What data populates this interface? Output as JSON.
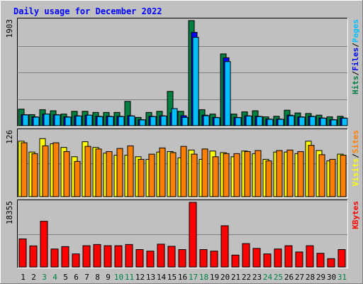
{
  "chart_data": {
    "type": "bar",
    "title": "Daily usage for December 2022",
    "categories": [
      "1",
      "2",
      "3",
      "4",
      "5",
      "6",
      "7",
      "8",
      "9",
      "10",
      "11",
      "12",
      "13",
      "14",
      "15",
      "16",
      "17",
      "18",
      "19",
      "20",
      "21",
      "22",
      "23",
      "24",
      "25",
      "26",
      "27",
      "28",
      "29",
      "30",
      "31"
    ],
    "weekend_days": [
      "3",
      "4",
      "10",
      "11",
      "17",
      "18",
      "24",
      "25",
      "31"
    ],
    "panels": [
      {
        "id": "hits_panel",
        "ymax_label": "1903",
        "ymax": 1903,
        "axis_legend": [
          {
            "text": "Hits",
            "color": "#008040"
          },
          {
            "text": "Files",
            "color": "#0000ff"
          },
          {
            "text": "Pages",
            "color": "#00c0ff"
          }
        ],
        "series": [
          {
            "name": "Hits",
            "color": "#008040",
            "values": [
              300,
              200,
              290,
              270,
              210,
              260,
              260,
              240,
              240,
              240,
              440,
              150,
              240,
              260,
              620,
              260,
              1903,
              290,
              210,
              1300,
              210,
              250,
              270,
              160,
              170,
              280,
              230,
              220,
              190,
              160,
              170
            ]
          },
          {
            "name": "Files",
            "color": "#0000ff",
            "values": [
              200,
              160,
              210,
              200,
              160,
              180,
              190,
              170,
              170,
              170,
              180,
              110,
              170,
              180,
              230,
              180,
              1690,
              190,
              150,
              1230,
              150,
              180,
              170,
              120,
              120,
              190,
              160,
              170,
              140,
              110,
              140
            ]
          },
          {
            "name": "Pages",
            "color": "#00c0ff",
            "values": [
              195,
              155,
              210,
              195,
              155,
              175,
              190,
              165,
              165,
              165,
              175,
              105,
              165,
              175,
              310,
              150,
              1600,
              180,
              145,
              1160,
              145,
              175,
              165,
              115,
              115,
              180,
              155,
              165,
              135,
              105,
              135
            ]
          }
        ]
      },
      {
        "id": "visits_panel",
        "ymax_label": "126",
        "ymax": 126,
        "axis_legend": [
          {
            "text": "Visits",
            "color": "#ffff00"
          },
          {
            "text": "Sites",
            "color": "#ff8000"
          }
        ],
        "series": [
          {
            "name": "Visits",
            "color": "#ffff00",
            "values": [
              107,
              86,
              112,
              102,
              95,
              77,
              106,
              95,
              84,
              80,
              80,
              77,
              72,
              86,
              87,
              75,
              90,
              72,
              88,
              85,
              77,
              88,
              83,
              72,
              86,
              86,
              83,
              107,
              89,
              69,
              82
            ]
          },
          {
            "name": "Sites",
            "color": "#ff8000",
            "values": [
              104,
              83,
              98,
              104,
              87,
              68,
              97,
              92,
              87,
              93,
              98,
              72,
              82,
              94,
              85,
              97,
              82,
              92,
              77,
              83,
              83,
              87,
              89,
              69,
              89,
              90,
              87,
              99,
              81,
              72,
              80
            ]
          }
        ]
      },
      {
        "id": "kbytes_panel",
        "ymax_label": "18355",
        "ymax": 18355,
        "axis_legend": [
          {
            "text": "KBytes",
            "color": "#ff0000"
          }
        ],
        "series": [
          {
            "name": "KBytes",
            "color": "#ff0000",
            "values": [
              7970,
              5990,
              12980,
              5100,
              5780,
              3710,
              6040,
              6380,
              6040,
              6040,
              6380,
              4940,
              4500,
              6470,
              5870,
              4940,
              18355,
              4940,
              4500,
              11710,
              3370,
              6640,
              5270,
              3710,
              5100,
              6040,
              4260,
              6040,
              3880,
              2370,
              4940
            ]
          }
        ]
      }
    ],
    "colors": {
      "title": "#0000ff",
      "day_label": "#000000",
      "weekend_label": "#008040",
      "plot_background": "#c0c0c0",
      "gridline": "#808080"
    }
  }
}
